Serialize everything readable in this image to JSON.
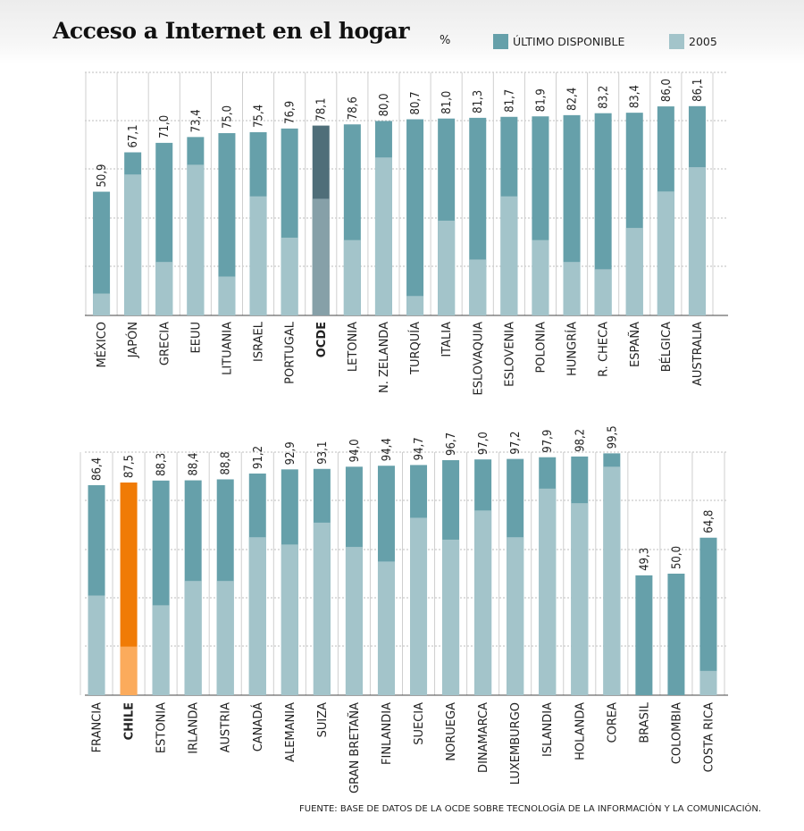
{
  "title": "Acceso a Internet en el hogar",
  "unit": "%",
  "legend": [
    {
      "label": "ÚLTIMO DISPONIBLE",
      "color": "#66a0aa"
    },
    {
      "label": "2005",
      "color": "#a3c4ca"
    }
  ],
  "source": "FUENTE: BASE DE DATOS DE LA OCDE SOBRE TECNOLOGÍA DE LA INFORMACIÓN Y LA COMUNICACIÓN.",
  "colors": {
    "latest": "#66a0aa",
    "base2005": "#a3c4ca",
    "oecd_latest": "#4f6e79",
    "oecd_2005": "#86a0a8",
    "chile_latest": "#f07b06",
    "chile_2005": "#fbab5c",
    "grid": "#bdbdbd"
  },
  "chart_data": [
    {
      "type": "bar",
      "ylim": [
        0,
        100
      ],
      "highlight": {
        "OCDE": "oecd"
      },
      "categories": [
        "MÉXICO",
        "JAPÓN",
        "GRECIA",
        "EEUU",
        "LITUANIA",
        "ISRAEL",
        "PORTUGAL",
        "OCDE",
        "LETONIA",
        "N. ZELANDA",
        "TURQUÍA",
        "ITALIA",
        "ESLOVAQUIA",
        "ESLOVENIA",
        "POLONIA",
        "HUNGRÍA",
        "R. CHECA",
        "ESPAÑA",
        "BÉLGICA",
        "AUSTRALIA"
      ],
      "series": [
        {
          "name": "ÚLTIMO DISPONIBLE",
          "values": [
            50.9,
            67.1,
            71.0,
            73.4,
            75.0,
            75.4,
            76.9,
            78.1,
            78.6,
            80.0,
            80.7,
            81.0,
            81.3,
            81.7,
            81.9,
            82.4,
            83.2,
            83.4,
            86.0,
            86.1
          ],
          "labels": [
            "50,9",
            "67,1",
            "71,0",
            "73,4",
            "75,0",
            "75,4",
            "76,9",
            "78,1",
            "78,6",
            "80,0",
            "80,7",
            "81,0",
            "81,3",
            "81,7",
            "81,9",
            "82,4",
            "83,2",
            "83,4",
            "86,0",
            "86,1"
          ]
        },
        {
          "name": "2005",
          "values": [
            9,
            58,
            22,
            62,
            16,
            49,
            32,
            48,
            31,
            65,
            8,
            39,
            23,
            49,
            31,
            22,
            19,
            36,
            51,
            61
          ]
        }
      ]
    },
    {
      "type": "bar",
      "ylim": [
        0,
        100
      ],
      "highlight": {
        "CHILE": "chile"
      },
      "categories": [
        "FRANCIA",
        "CHILE",
        "ESTONIA",
        "IRLANDA",
        "AUSTRIA",
        "CANADÁ",
        "ALEMANIA",
        "SUIZA",
        "GRAN BRETAÑA",
        "FINLANDIA",
        "SUECIA",
        "NORUEGA",
        "DINAMARCA",
        "LUXEMBURGO",
        "ISLANDIA",
        "HOLANDA",
        "COREA",
        "BRASIL",
        "COLOMBIA",
        "COSTA RICA"
      ],
      "series": [
        {
          "name": "ÚLTIMO DISPONIBLE",
          "values": [
            86.4,
            87.5,
            88.3,
            88.4,
            88.8,
            91.2,
            92.9,
            93.1,
            94.0,
            94.4,
            94.7,
            96.7,
            97.0,
            97.2,
            97.9,
            98.2,
            99.5,
            49.3,
            50.0,
            64.8
          ],
          "labels": [
            "86,4",
            "87,5",
            "88,3",
            "88,4",
            "88,8",
            "91,2",
            "92,9",
            "93,1",
            "94,0",
            "94,4",
            "94,7",
            "96,7",
            "97,0",
            "97,2",
            "97,9",
            "98,2",
            "99,5",
            "49,3",
            "50,0",
            "64,8"
          ]
        },
        {
          "name": "2005",
          "values": [
            41,
            20,
            37,
            47,
            47,
            65,
            62,
            71,
            61,
            55,
            73,
            64,
            76,
            65,
            85,
            79,
            94,
            null,
            null,
            10
          ]
        }
      ]
    }
  ]
}
